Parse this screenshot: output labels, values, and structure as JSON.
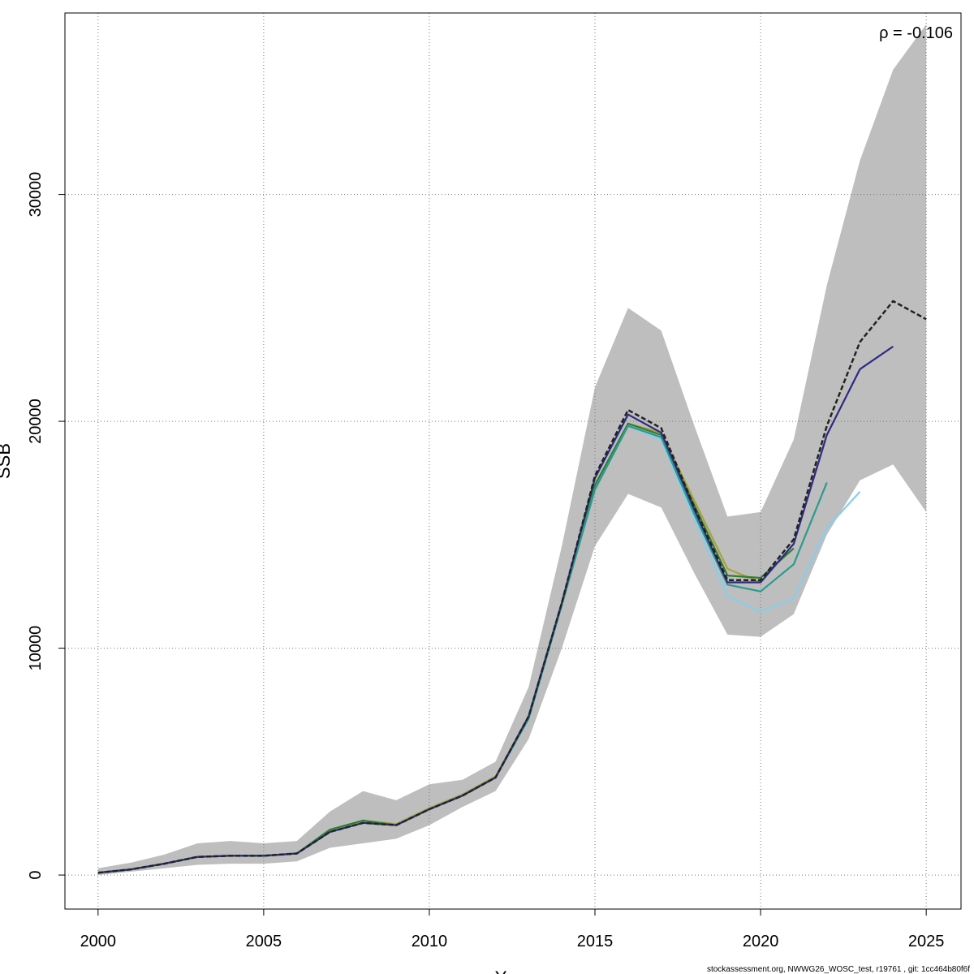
{
  "chart_data": {
    "type": "line",
    "title": "",
    "xlabel": "Year",
    "ylabel": "SSB",
    "xlim": [
      1999,
      2026.05
    ],
    "ylim": [
      -1500,
      38000
    ],
    "x_ticks": [
      2000,
      2005,
      2010,
      2015,
      2020,
      2025
    ],
    "y_ticks": [
      0,
      10000,
      20000,
      30000
    ],
    "grid": true,
    "annotation": "ρ = -0.106",
    "footer": "stockassessment.org, NWWG26_WOSC_test, r19761 , git: 1cc464b80f6f",
    "confidence_band": {
      "x": [
        2000,
        2001,
        2002,
        2003,
        2004,
        2005,
        2006,
        2007,
        2008,
        2009,
        2010,
        2011,
        2012,
        2013,
        2014,
        2015,
        2016,
        2017,
        2018,
        2019,
        2020,
        2021,
        2022,
        2023,
        2024,
        2025
      ],
      "lower": [
        0,
        150,
        300,
        450,
        500,
        500,
        600,
        1200,
        1400,
        1600,
        2200,
        3000,
        3700,
        6000,
        10000,
        14500,
        16800,
        16200,
        13300,
        10600,
        10500,
        11500,
        15000,
        17400,
        18100,
        16000
      ],
      "upper": [
        300,
        550,
        900,
        1400,
        1500,
        1400,
        1500,
        2800,
        3700,
        3300,
        4000,
        4200,
        5000,
        8300,
        14500,
        21500,
        25000,
        24000,
        19800,
        15800,
        16000,
        19200,
        26000,
        31500,
        35500,
        37500
      ]
    },
    "series": [
      {
        "color": "#222222",
        "dashed": true,
        "x": [
          2000,
          2001,
          2002,
          2003,
          2004,
          2005,
          2006,
          2007,
          2008,
          2009,
          2010,
          2011,
          2012,
          2013,
          2014,
          2015,
          2016,
          2017,
          2018,
          2019,
          2020,
          2021,
          2022,
          2023,
          2024,
          2025
        ],
        "values": [
          100,
          250,
          500,
          800,
          850,
          850,
          950,
          1900,
          2300,
          2200,
          2900,
          3500,
          4300,
          7000,
          12000,
          17600,
          20500,
          19700,
          16200,
          13000,
          13000,
          14800,
          19800,
          23500,
          25300,
          24500
        ]
      },
      {
        "color": "#2d2a84",
        "x": [
          2000,
          2001,
          2002,
          2003,
          2004,
          2005,
          2006,
          2007,
          2008,
          2009,
          2010,
          2011,
          2012,
          2013,
          2014,
          2015,
          2016,
          2017,
          2018,
          2019,
          2020,
          2021,
          2022,
          2023,
          2024
        ],
        "values": [
          100,
          250,
          500,
          800,
          850,
          850,
          950,
          1900,
          2300,
          2200,
          2900,
          3500,
          4300,
          7000,
          12000,
          17500,
          20300,
          19500,
          16100,
          12900,
          12900,
          14600,
          19400,
          22300,
          23300
        ]
      },
      {
        "color": "#2b9a8e",
        "x": [
          2000,
          2001,
          2002,
          2003,
          2004,
          2005,
          2006,
          2007,
          2008,
          2009,
          2010,
          2011,
          2012,
          2013,
          2014,
          2015,
          2016,
          2017,
          2018,
          2019,
          2020,
          2021,
          2022
        ],
        "values": [
          100,
          250,
          500,
          800,
          850,
          850,
          950,
          1900,
          2300,
          2200,
          2900,
          3500,
          4300,
          6900,
          11900,
          17000,
          19800,
          19300,
          15900,
          12800,
          12500,
          13700,
          17300
        ]
      },
      {
        "color": "#87ceeb",
        "x": [
          2000,
          2001,
          2002,
          2003,
          2004,
          2005,
          2006,
          2007,
          2008,
          2009,
          2010,
          2011,
          2012,
          2013,
          2014,
          2015,
          2016,
          2017,
          2018,
          2019,
          2020,
          2021,
          2022,
          2023
        ],
        "values": [
          100,
          250,
          500,
          800,
          850,
          850,
          950,
          1900,
          2300,
          2200,
          2900,
          3500,
          4300,
          6900,
          11900,
          17000,
          19800,
          19200,
          15700,
          12300,
          11600,
          12200,
          15300,
          16900
        ]
      },
      {
        "color": "#2e7d32",
        "x": [
          2000,
          2001,
          2002,
          2003,
          2004,
          2005,
          2006,
          2007,
          2008,
          2009,
          2010,
          2011,
          2012,
          2013,
          2014,
          2015,
          2016,
          2017,
          2018,
          2019,
          2020,
          2021
        ],
        "values": [
          100,
          250,
          500,
          800,
          850,
          850,
          950,
          2000,
          2400,
          2200,
          2900,
          3500,
          4300,
          7000,
          12000,
          17200,
          19900,
          19400,
          16300,
          13200,
          13100,
          14400
        ]
      },
      {
        "color": "#a8a23a",
        "x": [
          2000,
          2001,
          2002,
          2003,
          2004,
          2005,
          2006,
          2007,
          2008,
          2009,
          2010,
          2011,
          2012,
          2013,
          2014,
          2015,
          2016,
          2017,
          2018,
          2019,
          2020
        ],
        "values": [
          100,
          250,
          500,
          800,
          850,
          850,
          950,
          2000,
          2400,
          2250,
          2950,
          3550,
          4350,
          7000,
          11900,
          17000,
          19900,
          19500,
          16500,
          13500,
          12900
        ]
      }
    ]
  }
}
